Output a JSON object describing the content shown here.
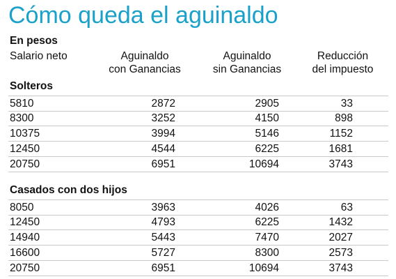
{
  "title": "Cómo queda el aguinaldo",
  "unit_label": "En pesos",
  "headers": {
    "col1": "Salario neto",
    "col2_line1": "Aguinaldo",
    "col2_line2": "con Ganancias",
    "col3_line1": "Aguinaldo",
    "col3_line2": "sin Ganancias",
    "col4_line1": "Reducción",
    "col4_line2": "del impuesto"
  },
  "sections": [
    {
      "title": "Solteros",
      "rows": [
        [
          "5810",
          "2872",
          "2905",
          "33"
        ],
        [
          "8300",
          "3252",
          "4150",
          "898"
        ],
        [
          "10375",
          "3994",
          "5146",
          "1152"
        ],
        [
          "12450",
          "4544",
          "6225",
          "1681"
        ],
        [
          "20750",
          "6951",
          "10694",
          "3743"
        ]
      ]
    },
    {
      "title": "Casados con dos hijos",
      "rows": [
        [
          "8050",
          "3963",
          "4026",
          "63"
        ],
        [
          "12450",
          "4793",
          "6225",
          "1432"
        ],
        [
          "14940",
          "5443",
          "7470",
          "2027"
        ],
        [
          "16600",
          "5727",
          "8300",
          "2573"
        ],
        [
          "20750",
          "6951",
          "10694",
          "3743"
        ]
      ]
    }
  ],
  "colors": {
    "title": "#1ba1c9",
    "rule": "#c9c9c9",
    "text": "#111111"
  }
}
